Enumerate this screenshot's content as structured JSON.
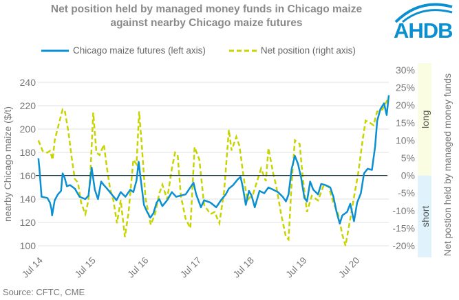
{
  "logo_text": "AHDB",
  "source": "Source: CFTC, CME",
  "colors": {
    "price": "#0a8fd1",
    "net": "#c8d400",
    "long_band": "#fbfde3",
    "short_band": "#e0f3fc",
    "zero_line": "#1d3a4a"
  },
  "chart_data": {
    "type": "line",
    "title": "Net position held by managed money funds in Chicago maize against nearby Chicago maize futures",
    "ylabel": "nearby Chicago maize ($/t)",
    "y2label": "Net postion held by managed money funds",
    "ylim": [
      100,
      240
    ],
    "y2lim": [
      -20,
      30
    ],
    "yticks": [
      "100",
      "120",
      "140",
      "160",
      "180",
      "200",
      "220",
      "240"
    ],
    "y2ticks": [
      "-20%",
      "-15%",
      "-10%",
      "-5%",
      "0%",
      "5%",
      "10%",
      "15%",
      "20%",
      "25%",
      "30%"
    ],
    "xlim": [
      2014.5,
      2021.15
    ],
    "xticks": [
      "Jul 14",
      "Jul 15",
      "Jul 16",
      "Jul 17",
      "Jul 18",
      "Jul 19",
      "Jul 20"
    ],
    "bands": {
      "long": "long",
      "short": "short"
    },
    "grid": true,
    "legend": "top",
    "series": [
      {
        "name": "Chicago maize futures (left axis)",
        "axis": "left",
        "style": "solid",
        "points": [
          [
            2014.51,
            175
          ],
          [
            2014.53,
            166
          ],
          [
            2014.57,
            142
          ],
          [
            2014.68,
            141
          ],
          [
            2014.73,
            137
          ],
          [
            2014.76,
            131
          ],
          [
            2014.77,
            126
          ],
          [
            2014.82,
            139
          ],
          [
            2014.88,
            144
          ],
          [
            2014.94,
            147
          ],
          [
            2014.97,
            162
          ],
          [
            2015.01,
            158
          ],
          [
            2015.05,
            151
          ],
          [
            2015.11,
            152
          ],
          [
            2015.2,
            149
          ],
          [
            2015.29,
            142
          ],
          [
            2015.4,
            140
          ],
          [
            2015.46,
            143
          ],
          [
            2015.52,
            167
          ],
          [
            2015.58,
            148
          ],
          [
            2015.64,
            140
          ],
          [
            2015.7,
            155
          ],
          [
            2015.75,
            152
          ],
          [
            2015.81,
            149
          ],
          [
            2015.9,
            144
          ],
          [
            2015.99,
            139
          ],
          [
            2016.07,
            146
          ],
          [
            2016.16,
            142
          ],
          [
            2016.25,
            148
          ],
          [
            2016.31,
            146
          ],
          [
            2016.37,
            156
          ],
          [
            2016.41,
            172
          ],
          [
            2016.45,
            157
          ],
          [
            2016.51,
            135
          ],
          [
            2016.57,
            129
          ],
          [
            2016.63,
            124
          ],
          [
            2016.69,
            128
          ],
          [
            2016.75,
            137
          ],
          [
            2016.8,
            140
          ],
          [
            2016.86,
            134
          ],
          [
            2016.95,
            139
          ],
          [
            2017.04,
            146
          ],
          [
            2017.12,
            142
          ],
          [
            2017.21,
            143
          ],
          [
            2017.3,
            144
          ],
          [
            2017.36,
            148
          ],
          [
            2017.45,
            154
          ],
          [
            2017.5,
            144
          ],
          [
            2017.59,
            133
          ],
          [
            2017.65,
            139
          ],
          [
            2017.77,
            137
          ],
          [
            2017.88,
            133
          ],
          [
            2017.97,
            139
          ],
          [
            2018.06,
            144
          ],
          [
            2018.12,
            149
          ],
          [
            2018.2,
            152
          ],
          [
            2018.29,
            157
          ],
          [
            2018.34,
            159
          ],
          [
            2018.38,
            151
          ],
          [
            2018.44,
            135
          ],
          [
            2018.5,
            147
          ],
          [
            2018.55,
            143
          ],
          [
            2018.61,
            133
          ],
          [
            2018.7,
            147
          ],
          [
            2018.79,
            145
          ],
          [
            2018.87,
            150
          ],
          [
            2018.96,
            148
          ],
          [
            2019.05,
            146
          ],
          [
            2019.14,
            142
          ],
          [
            2019.2,
            138
          ],
          [
            2019.25,
            144
          ],
          [
            2019.31,
            166
          ],
          [
            2019.37,
            177
          ],
          [
            2019.43,
            170
          ],
          [
            2019.49,
            158
          ],
          [
            2019.55,
            141
          ],
          [
            2019.6,
            138
          ],
          [
            2019.66,
            155
          ],
          [
            2019.72,
            148
          ],
          [
            2019.81,
            144
          ],
          [
            2019.87,
            153
          ],
          [
            2019.95,
            152
          ],
          [
            2020.04,
            150
          ],
          [
            2020.1,
            142
          ],
          [
            2020.16,
            129
          ],
          [
            2020.22,
            119
          ],
          [
            2020.27,
            126
          ],
          [
            2020.36,
            129
          ],
          [
            2020.42,
            136
          ],
          [
            2020.49,
            121
          ],
          [
            2020.55,
            137
          ],
          [
            2020.62,
            145
          ],
          [
            2020.68,
            162
          ],
          [
            2020.75,
            166
          ],
          [
            2020.83,
            165
          ],
          [
            2020.89,
            185
          ],
          [
            2020.93,
            207
          ],
          [
            2020.99,
            217
          ],
          [
            2021.06,
            222
          ],
          [
            2021.11,
            212
          ],
          [
            2021.15,
            229
          ]
        ]
      },
      {
        "name": "Net position (right axis)",
        "axis": "right",
        "style": "dashed",
        "points": [
          [
            2014.51,
            10
          ],
          [
            2014.59,
            7
          ],
          [
            2014.68,
            6.5
          ],
          [
            2014.73,
            7
          ],
          [
            2014.78,
            4.5
          ],
          [
            2014.82,
            10
          ],
          [
            2014.88,
            13.6
          ],
          [
            2014.97,
            18.8
          ],
          [
            2015.01,
            18.5
          ],
          [
            2015.08,
            12.3
          ],
          [
            2015.14,
            5.2
          ],
          [
            2015.2,
            -1
          ],
          [
            2015.26,
            -2
          ],
          [
            2015.32,
            -7.8
          ],
          [
            2015.4,
            -11
          ],
          [
            2015.46,
            -7
          ],
          [
            2015.5,
            2
          ],
          [
            2015.55,
            17.9
          ],
          [
            2015.61,
            6.5
          ],
          [
            2015.67,
            5.8
          ],
          [
            2015.75,
            8.8
          ],
          [
            2015.81,
            2
          ],
          [
            2015.87,
            -3.9
          ],
          [
            2015.93,
            -7
          ],
          [
            2016.0,
            -13.6
          ],
          [
            2016.07,
            -7
          ],
          [
            2016.15,
            -17.5
          ],
          [
            2016.22,
            -10.4
          ],
          [
            2016.31,
            4.5
          ],
          [
            2016.37,
            3.2
          ],
          [
            2016.42,
            18.2
          ],
          [
            2016.47,
            8.4
          ],
          [
            2016.54,
            -6.5
          ],
          [
            2016.64,
            -14
          ],
          [
            2016.72,
            -11
          ],
          [
            2016.8,
            -5.2
          ],
          [
            2016.86,
            -2.6
          ],
          [
            2016.95,
            -6.8
          ],
          [
            2017.04,
            2
          ],
          [
            2017.1,
            6.5
          ],
          [
            2017.15,
            5.8
          ],
          [
            2017.21,
            -5.8
          ],
          [
            2017.3,
            -12.3
          ],
          [
            2017.39,
            -15
          ],
          [
            2017.47,
            8.1
          ],
          [
            2017.56,
            4.5
          ],
          [
            2017.65,
            -8.4
          ],
          [
            2017.77,
            -11
          ],
          [
            2017.85,
            -10.4
          ],
          [
            2017.94,
            -13.6
          ],
          [
            2018.03,
            -4.5
          ],
          [
            2018.12,
            13
          ],
          [
            2018.17,
            7.1
          ],
          [
            2018.26,
            11
          ],
          [
            2018.32,
            8.4
          ],
          [
            2018.4,
            -0.6
          ],
          [
            2018.47,
            -7.1
          ],
          [
            2018.58,
            -5.2
          ],
          [
            2018.73,
            2
          ],
          [
            2018.82,
            -1.6
          ],
          [
            2018.87,
            7.8
          ],
          [
            2018.96,
            0.6
          ],
          [
            2019.02,
            -3.2
          ],
          [
            2019.11,
            -11
          ],
          [
            2019.2,
            -17.5
          ],
          [
            2019.25,
            -18.2
          ],
          [
            2019.31,
            -1.9
          ],
          [
            2019.37,
            10
          ],
          [
            2019.46,
            9
          ],
          [
            2019.52,
            -0.6
          ],
          [
            2019.6,
            -10.4
          ],
          [
            2019.69,
            -5.8
          ],
          [
            2019.81,
            -7.1
          ],
          [
            2019.92,
            -2.6
          ],
          [
            2020.01,
            -3.2
          ],
          [
            2020.1,
            -7.8
          ],
          [
            2020.19,
            -11
          ],
          [
            2020.27,
            -16.9
          ],
          [
            2020.33,
            -20
          ],
          [
            2020.42,
            -12.3
          ],
          [
            2020.51,
            -4.5
          ],
          [
            2020.57,
            0.6
          ],
          [
            2020.65,
            9.7
          ],
          [
            2020.71,
            15.6
          ],
          [
            2020.8,
            14.9
          ],
          [
            2020.86,
            14.3
          ],
          [
            2020.93,
            18.2
          ],
          [
            2021.03,
            18.8
          ],
          [
            2021.12,
            21.4
          ],
          [
            2021.15,
            22
          ]
        ]
      }
    ]
  }
}
